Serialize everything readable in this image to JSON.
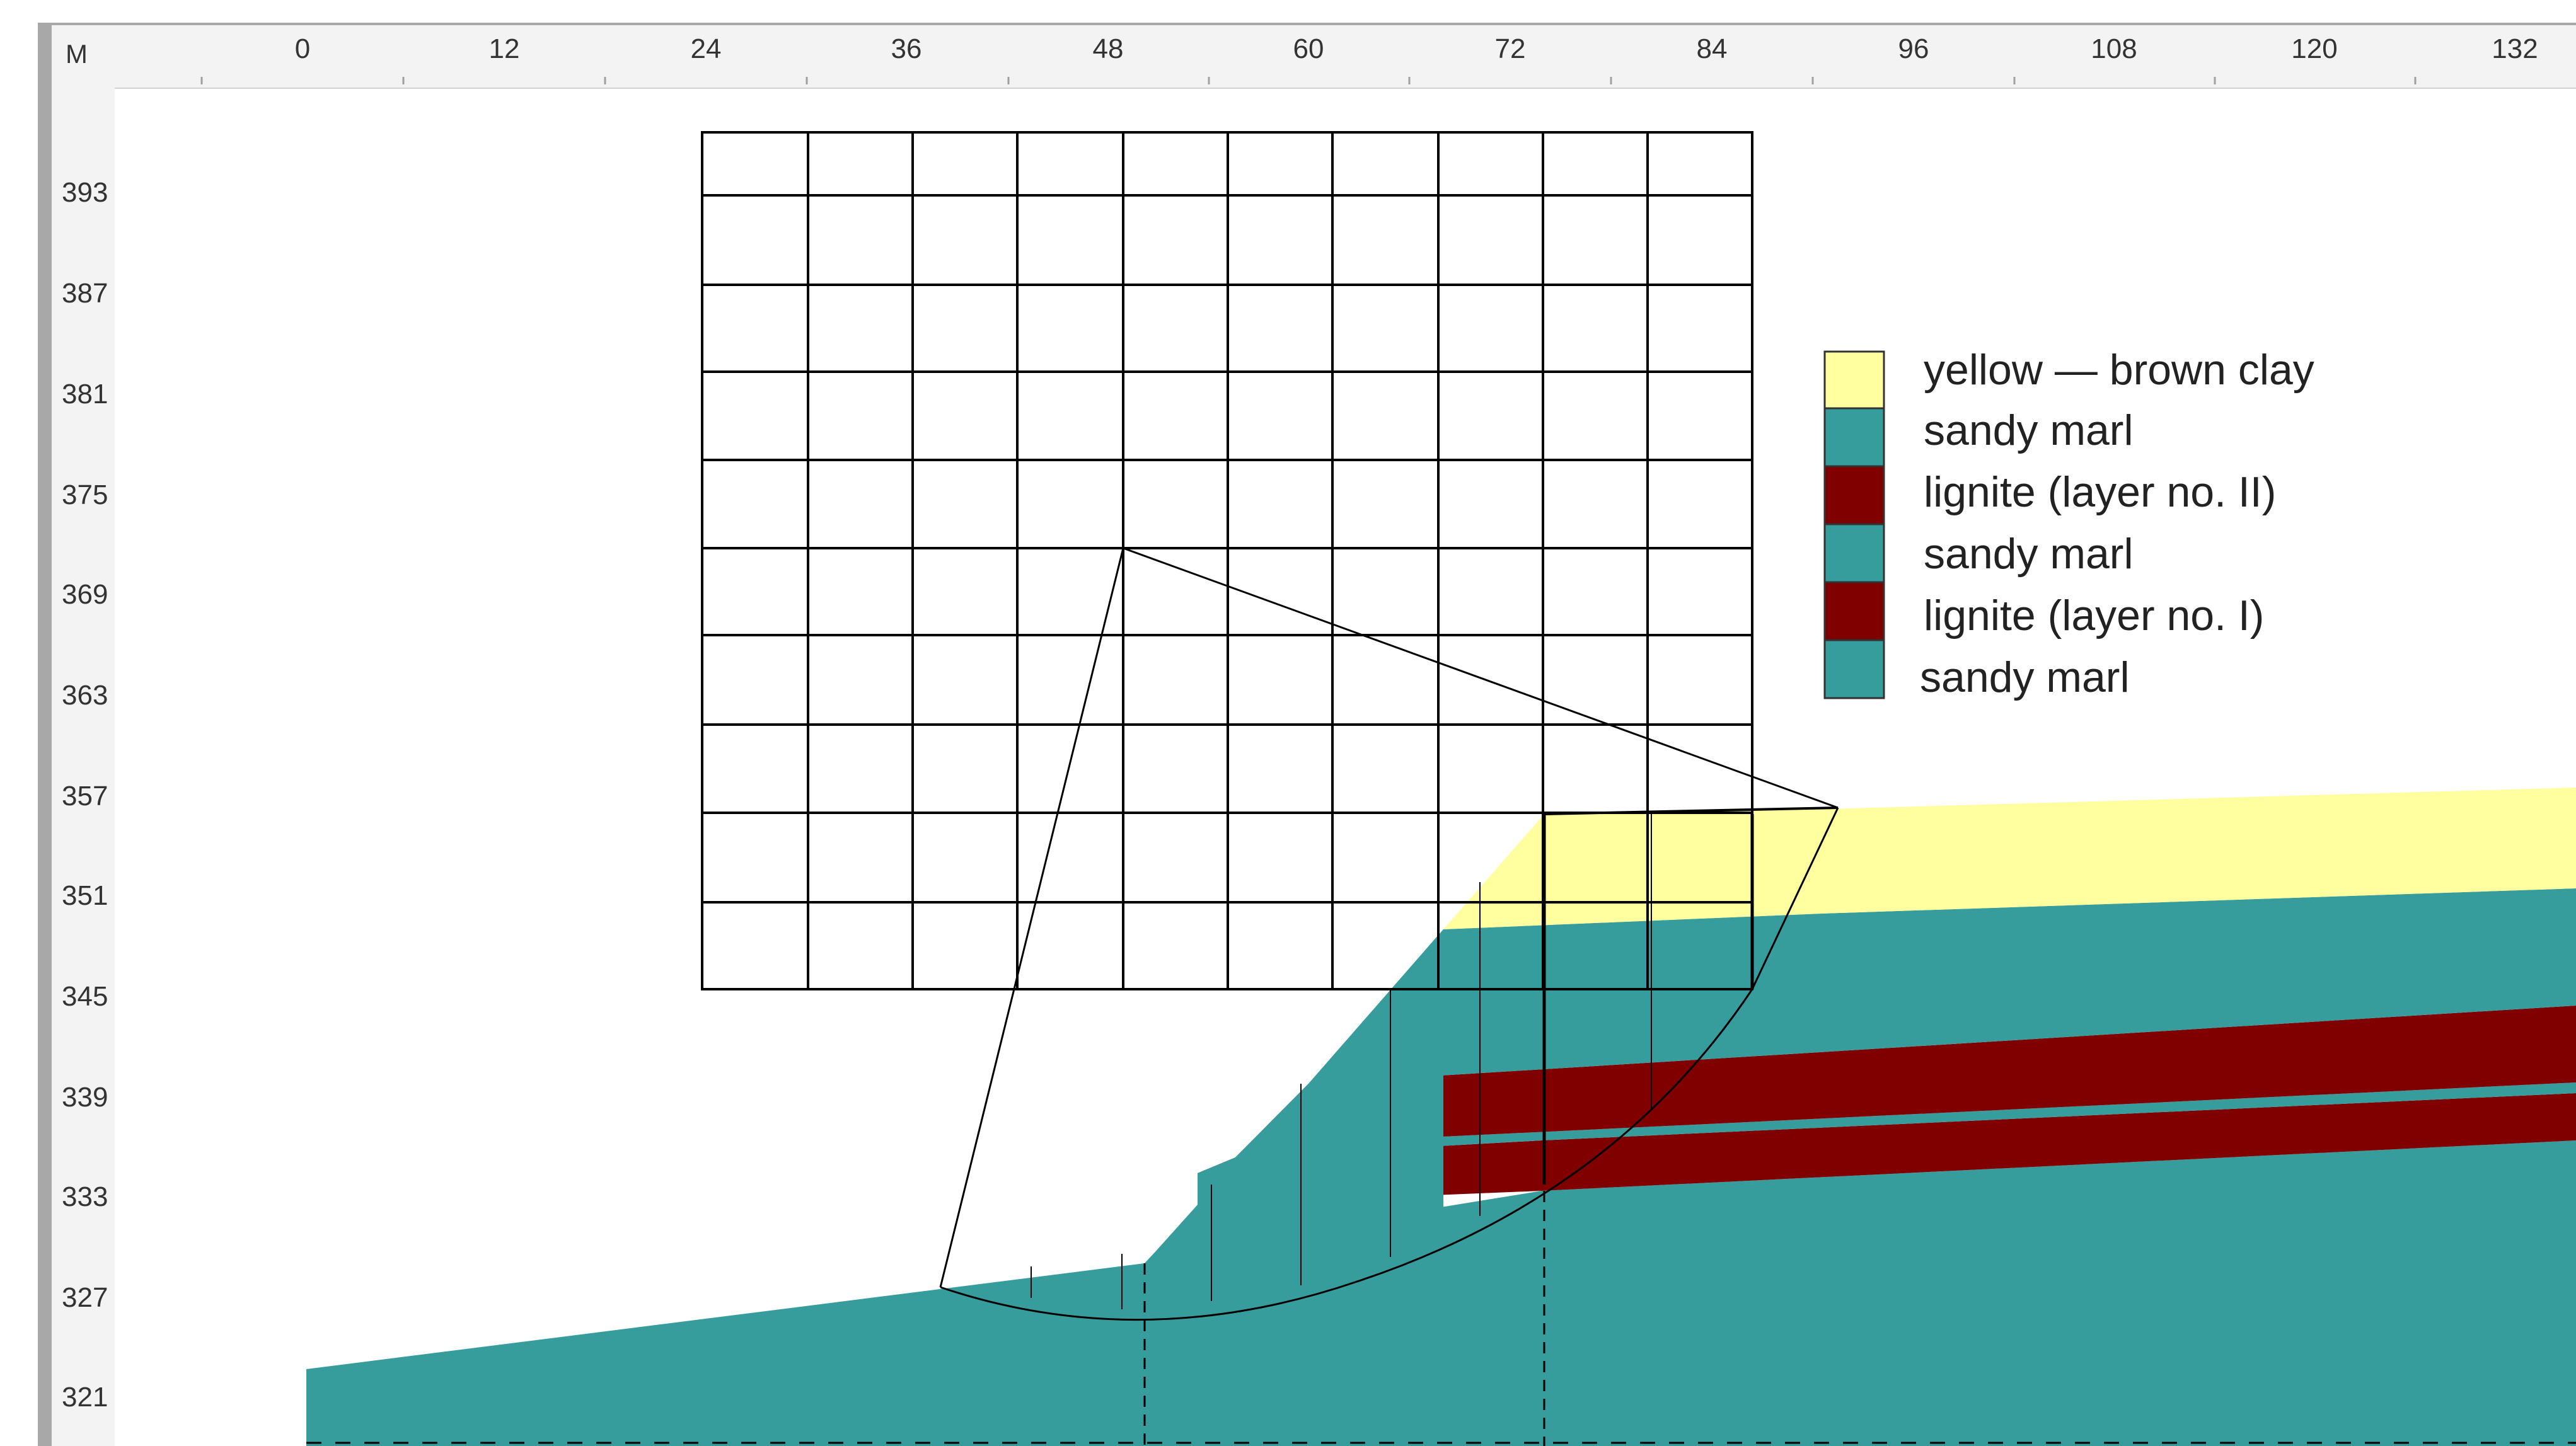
{
  "ruler": {
    "unit_label": "M",
    "x_ticks": [
      "0",
      "12",
      "24",
      "36",
      "48",
      "60",
      "72",
      "84",
      "96",
      "108",
      "120",
      "132"
    ],
    "y_ticks": [
      "393",
      "387",
      "381",
      "375",
      "369",
      "363",
      "357",
      "351",
      "345",
      "339",
      "333",
      "327",
      "321"
    ]
  },
  "legend": [
    {
      "label": "yellow — brown clay",
      "color": "#FFFFA0"
    },
    {
      "label": "sandy marl",
      "color": "#379C9C"
    },
    {
      "label": "lignite (layer no. II)",
      "color": "#800000"
    },
    {
      "label": "sandy marl",
      "color": "#379C9C"
    },
    {
      "label": "lignite (layer no. I)",
      "color": "#800000"
    },
    {
      "label": "sandy marl",
      "color": "#379C9C"
    }
  ],
  "colors": {
    "clay": "#FFFFA0",
    "marl": "#379C9C",
    "lignite": "#800000",
    "ruler_bg": "#F0F0F0",
    "ruler_border": "#A8A8A8",
    "line": "#000000"
  },
  "icons": {
    "search_grid": "grid-icon",
    "slip_circle": "arc-icon"
  }
}
